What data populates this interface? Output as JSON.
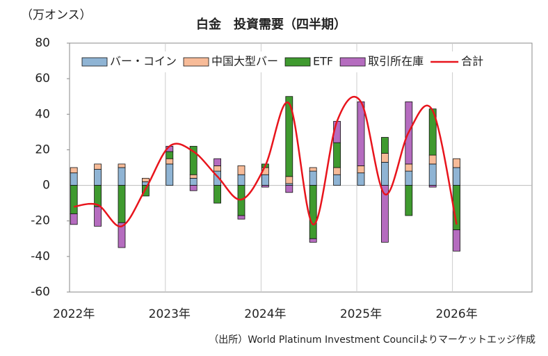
{
  "chart_data": {
    "type": "bar",
    "title": "白金　投資需要（四半期）",
    "y_label": "（万オンス）",
    "source": "（出所）World Platinum Investment Councilよりマーケットエッジ作成",
    "categories": [
      "2022年",
      null,
      null,
      null,
      "2023年",
      null,
      null,
      null,
      "2024年",
      null,
      null,
      null,
      "2025年",
      null,
      null,
      null,
      "2026年",
      null,
      null,
      null
    ],
    "series": [
      {
        "name": "バー・コイン",
        "color": "#8fb4d4",
        "values": [
          7,
          9,
          10,
          2,
          12,
          4,
          8,
          6,
          6,
          1,
          8,
          6,
          7,
          13,
          8,
          12,
          10,
          null,
          null,
          null
        ]
      },
      {
        "name": "中国大型バー",
        "color": "#f7bb98",
        "values": [
          3,
          3,
          2,
          2,
          3,
          2,
          3,
          5,
          4,
          4,
          2,
          4,
          4,
          5,
          4,
          5,
          5,
          null,
          null,
          null
        ]
      },
      {
        "name": "ETF",
        "color": "#3f9a2f",
        "values": [
          -16,
          -12,
          -21,
          -6,
          4,
          16,
          -10,
          -17,
          2,
          45,
          -30,
          14,
          0,
          9,
          -17,
          26,
          -25,
          null,
          null,
          null
        ]
      },
      {
        "name": "取引所在庫",
        "color": "#b56cbf",
        "values": [
          -6,
          -11,
          -14,
          0,
          3,
          -3,
          4,
          -2,
          -1,
          -4,
          -2,
          12,
          36,
          -32,
          35,
          -1,
          -12,
          null,
          null,
          null
        ]
      },
      {
        "name": "合計",
        "type": "line",
        "color": "#e8141c",
        "values": [
          -12,
          -11,
          -23,
          -2,
          22,
          19,
          5,
          -8,
          11,
          46,
          -22,
          36,
          47,
          -5,
          30,
          42,
          -22,
          null,
          null,
          null
        ]
      }
    ],
    "ylim": [
      -60,
      80
    ],
    "yticks": [
      -60,
      -40,
      -20,
      0,
      20,
      40,
      60,
      80
    ],
    "legend": "top"
  }
}
